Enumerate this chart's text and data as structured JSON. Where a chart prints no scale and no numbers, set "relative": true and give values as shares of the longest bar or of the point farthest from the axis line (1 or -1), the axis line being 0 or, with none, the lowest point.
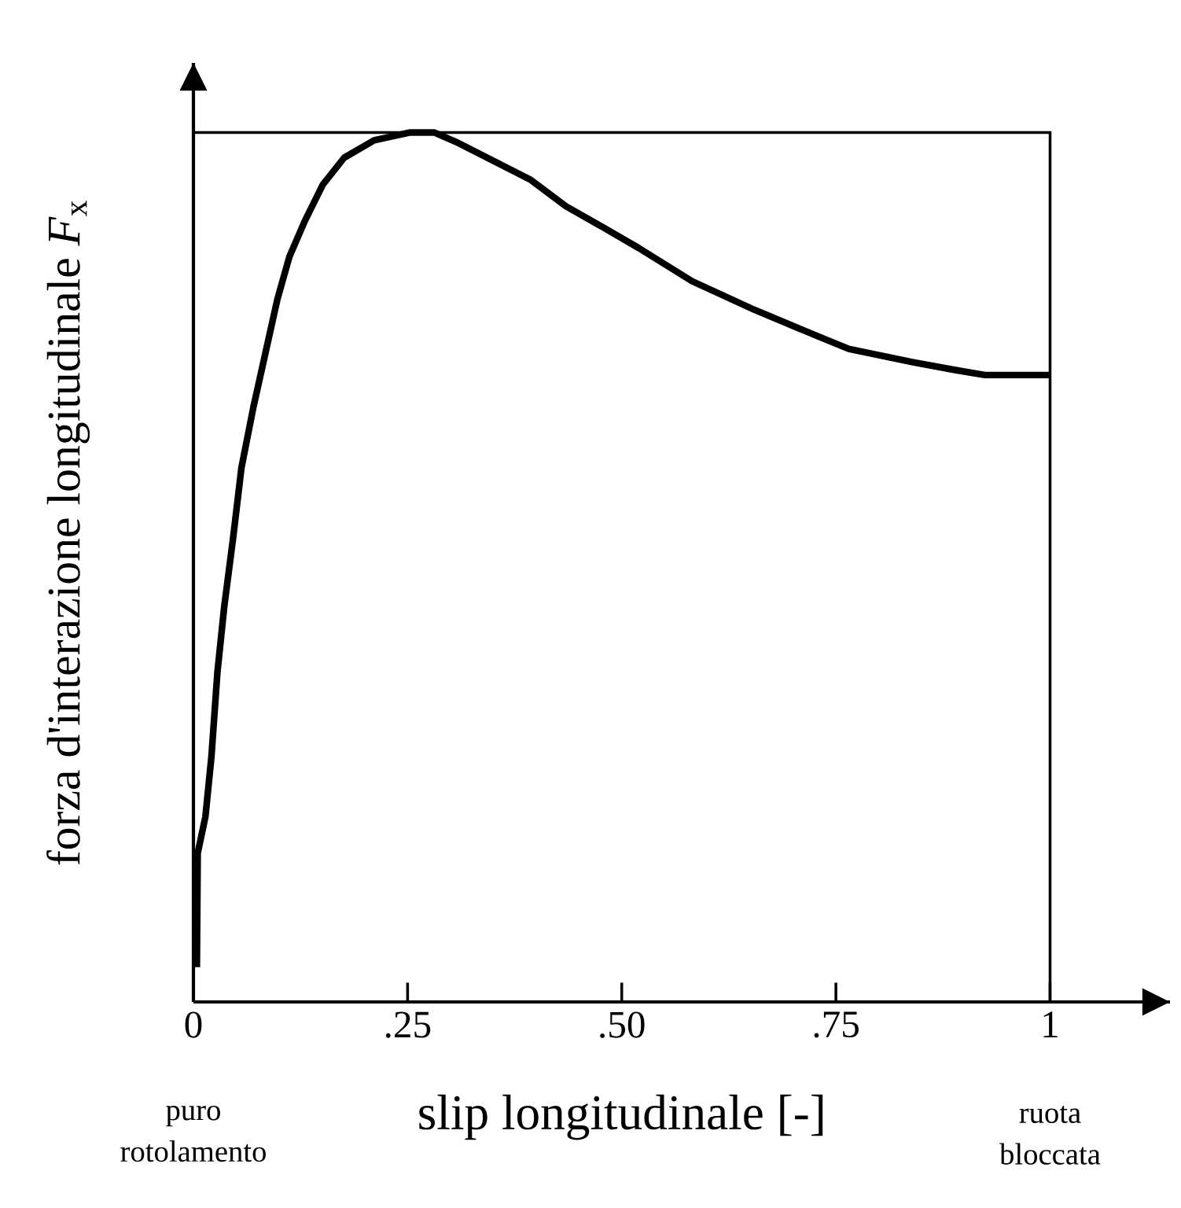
{
  "chart_data": {
    "type": "line",
    "xlabel": "slip longitudinale [-]",
    "ylabel": "forza d'interazione longitudinale *F*$_{x}$",
    "relative": true,
    "color": "#000000",
    "line_style": "solid",
    "x": [
      0.004,
      0.005,
      0.014,
      0.021,
      0.028,
      0.036,
      0.046,
      0.056,
      0.07,
      0.084,
      0.098,
      0.112,
      0.13,
      0.151,
      0.176,
      0.211,
      0.253,
      0.281,
      0.309,
      0.351,
      0.393,
      0.435,
      0.478,
      0.52,
      0.582,
      0.655,
      0.728,
      0.765,
      0.839,
      0.888,
      0.924,
      1.0
    ],
    "values": [
      0.04,
      0.171,
      0.213,
      0.282,
      0.379,
      0.455,
      0.531,
      0.614,
      0.684,
      0.746,
      0.808,
      0.857,
      0.898,
      0.94,
      0.971,
      0.991,
      1.0,
      1.0,
      0.988,
      0.967,
      0.946,
      0.915,
      0.891,
      0.867,
      0.829,
      0.796,
      0.766,
      0.751,
      0.736,
      0.727,
      0.721,
      0.721
    ],
    "xlim": [
      0,
      1.14
    ],
    "xticks": [
      0,
      {
        "value": 0.25,
        "label": ".25"
      },
      {
        "value": 0.5,
        "label": ".50"
      },
      {
        "value": 0.75,
        "label": ".75"
      },
      1
    ],
    "annotations": [
      "puro rotolamento",
      "ruota bloccata"
    ]
  }
}
